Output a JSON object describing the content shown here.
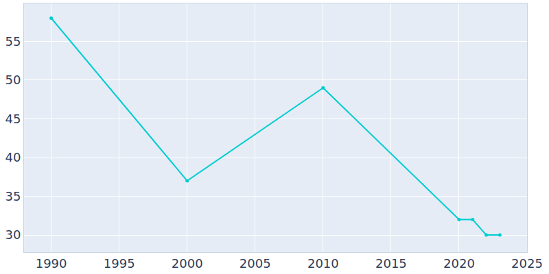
{
  "chart_data": {
    "type": "line",
    "x": [
      1990,
      2000,
      2010,
      2020,
      2021,
      2022,
      2023
    ],
    "values": [
      58,
      37,
      49,
      32,
      32,
      30,
      30
    ],
    "color": "#00cdd0",
    "marker": "circle",
    "xlim": [
      1988,
      2025
    ],
    "xticks": [
      1990,
      1995,
      2000,
      2005,
      2010,
      2015,
      2020,
      2025
    ],
    "ylim": [
      27.8,
      59.9
    ],
    "yticks": [
      30,
      35,
      40,
      45,
      50,
      55
    ],
    "grid": true
  }
}
